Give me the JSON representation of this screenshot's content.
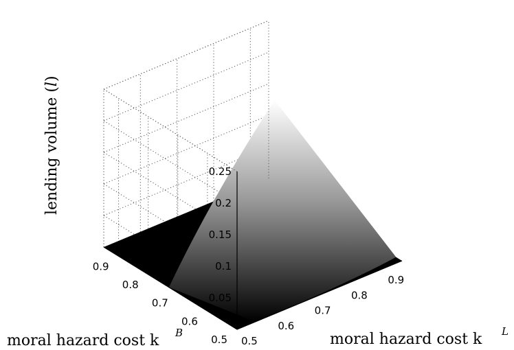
{
  "chart_data": {
    "type": "surface",
    "title": "",
    "zlabel": "lending volume (l)",
    "xlabel": "moral hazard cost k^L",
    "ylabel": "moral hazard cost k^B",
    "x_axis": {
      "label_text": "moral hazard cost k",
      "label_superscript": "L",
      "range": [
        0.5,
        0.95
      ],
      "ticks": [
        "0.5",
        "0.6",
        "0.7",
        "0.8",
        "0.9"
      ],
      "tick_values": [
        0.5,
        0.6,
        0.7,
        0.8,
        0.9
      ]
    },
    "y_axis": {
      "label_text": "moral hazard cost k",
      "label_superscript": "B",
      "range": [
        0.5,
        0.95
      ],
      "ticks": [
        "0.5",
        "0.6",
        "0.7",
        "0.8",
        "0.9"
      ],
      "tick_values": [
        0.5,
        0.6,
        0.7,
        0.8,
        0.9
      ]
    },
    "z_axis": {
      "label_prefix": "lending volume (",
      "label_var": "l",
      "label_suffix": ")",
      "range": [
        0,
        0.25
      ],
      "ticks": [
        "0.05",
        "0.1",
        "0.15",
        "0.2",
        "0.25"
      ],
      "tick_values": [
        0.05,
        0.1,
        0.15,
        0.2,
        0.25
      ]
    },
    "surface": {
      "description_points": [
        {
          "kL": 0.5,
          "kB": 0.5,
          "l": 0.0
        },
        {
          "kL": 0.95,
          "kB": 0.95,
          "l": 0.0
        },
        {
          "kL": 0.5,
          "kB": 0.95,
          "l": 0.0
        },
        {
          "kL": 0.95,
          "kB": 0.5,
          "l": 0.0
        },
        {
          "kL": 0.95,
          "kB": 0.93,
          "l": 0.13
        },
        {
          "kL": 0.5,
          "kB": 0.73,
          "l": 0.0
        },
        {
          "kL": 0.55,
          "kB": 0.5,
          "l": 0.0
        }
      ],
      "colormap": "gray",
      "grid": true
    }
  }
}
